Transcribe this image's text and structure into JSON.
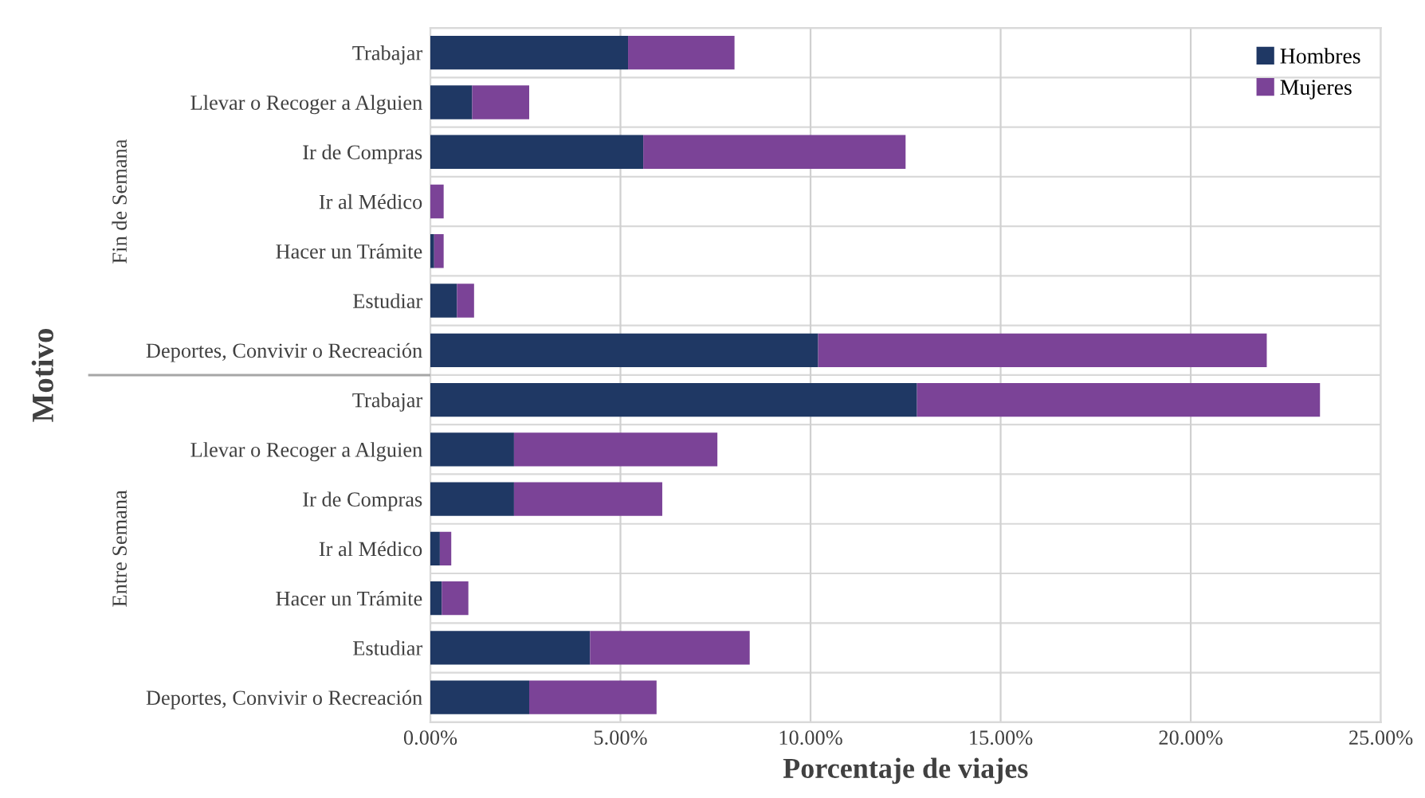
{
  "chart_data": {
    "type": "bar",
    "orientation": "horizontal",
    "stacked": true,
    "xlabel": "Porcentaje de viajes",
    "ylabel": "Motivo",
    "categories": [
      "Trabajar",
      "Llevar o Recoger a Alguien",
      "Ir de Compras",
      "Ir al Médico",
      "Hacer un Trámite",
      "Estudiar",
      "Deportes, Convivir o Recreación",
      "Trabajar",
      "Llevar o Recoger a Alguien",
      "Ir de Compras",
      "Ir al Médico",
      "Hacer un Trámite",
      "Estudiar",
      "Deportes, Convivir o Recreación"
    ],
    "series": [
      {
        "name": "Hombres",
        "color": "#1f3864",
        "values": [
          5.2,
          1.1,
          5.6,
          0,
          0.1,
          0.7,
          10.2,
          12.8,
          2.2,
          2.2,
          0.25,
          0.3,
          4.2,
          2.6
        ]
      },
      {
        "name": "Mujeres",
        "color": "#7b4397",
        "values": [
          2.8,
          1.5,
          6.9,
          0.35,
          0.25,
          0.45,
          11.8,
          10.6,
          5.35,
          3.9,
          0.3,
          0.7,
          4.2,
          3.35
        ]
      }
    ],
    "xlim": [
      0,
      25
    ],
    "xticks": [
      {
        "value": 0,
        "label": "0.00%"
      },
      {
        "value": 5,
        "label": "5.00%"
      },
      {
        "value": 10,
        "label": "10.00%"
      },
      {
        "value": 15,
        "label": "15.00%"
      },
      {
        "value": 20,
        "label": "20.00%"
      },
      {
        "value": 25,
        "label": "25.00%"
      }
    ],
    "annotations": [
      "Fin de Semana",
      "Entre Semana"
    ],
    "grid": true,
    "legend": "top right"
  }
}
